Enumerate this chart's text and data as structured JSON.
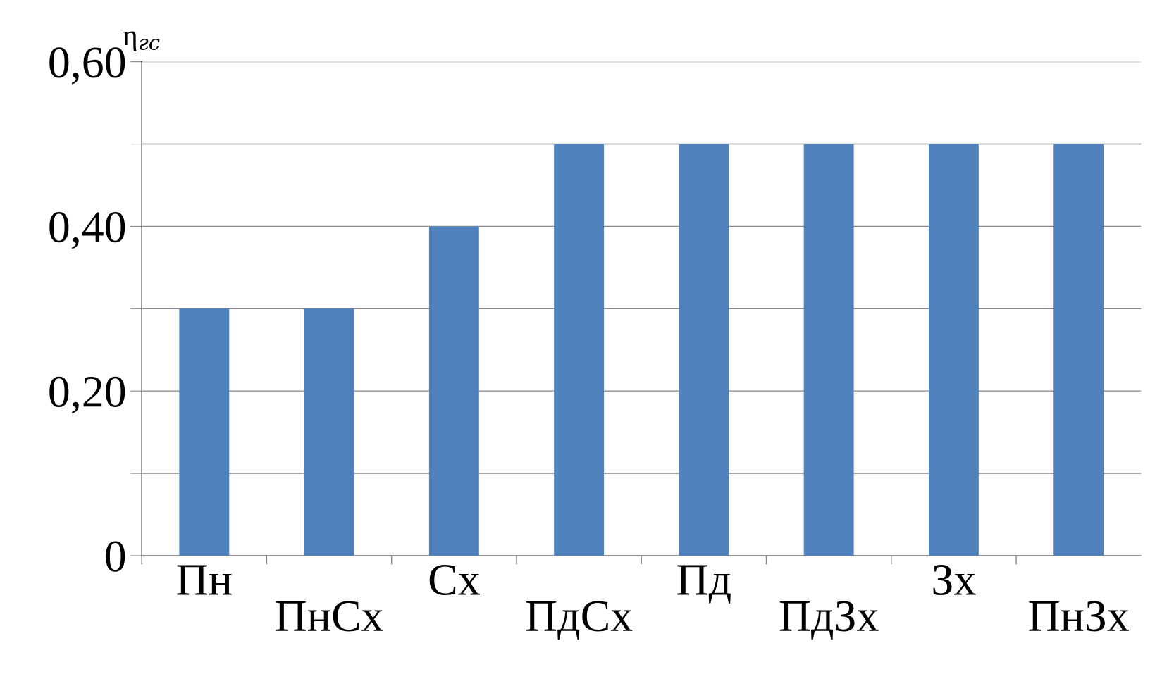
{
  "chart_data": {
    "type": "bar",
    "ylabel": "η$_{гс}$",
    "categories": [
      "Пн",
      "ПнСх",
      "Сх",
      "ПдСх",
      "Пд",
      "ПдЗх",
      "Зх",
      "ПнЗх"
    ],
    "values": [
      0.3,
      0.3,
      0.4,
      0.5,
      0.5,
      0.5,
      0.5,
      0.5
    ],
    "color": "#4f81bd",
    "ylim": [
      0,
      0.6
    ],
    "yticks": [
      {
        "value": 0,
        "label": "0"
      },
      {
        "value": 0.1,
        "label": null
      },
      {
        "value": 0.2,
        "label": "0,20"
      },
      {
        "value": 0.3,
        "label": null
      },
      {
        "value": 0.4,
        "label": "0,40"
      },
      {
        "value": 0.5,
        "label": null
      },
      {
        "value": 0.6,
        "label": "0,60"
      }
    ],
    "grid": "y"
  }
}
